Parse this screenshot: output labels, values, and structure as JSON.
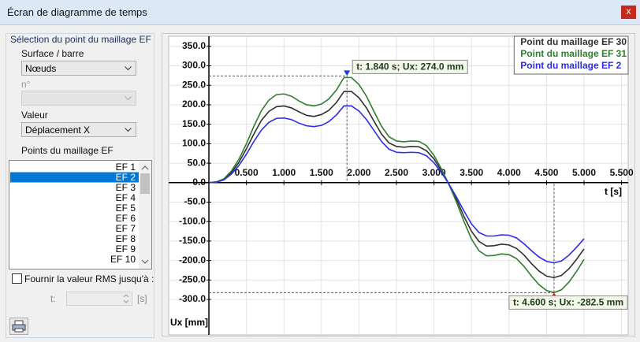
{
  "window": {
    "title": "Écran de diagramme de temps",
    "close": "x"
  },
  "panel": {
    "group_title": "Sélection du point du maillage EF",
    "surface_label": "Surface / barre",
    "surface_value": "Nœuds",
    "number_label": "n°",
    "value_label": "Valeur",
    "value_value": "Déplacement X",
    "points_label": "Points du maillage EF",
    "points": [
      "EF 1",
      "EF 2",
      "EF 3",
      "EF 4",
      "EF 5",
      "EF 6",
      "EF 7",
      "EF 8",
      "EF 9",
      "EF 10"
    ],
    "rms_label": "Fournir la valeur RMS jusqu'à :",
    "t_label": "t:",
    "t_unit": "[s]"
  },
  "chart_data": {
    "type": "line",
    "x_label": "t [s]",
    "y_label": "Ux [mm]",
    "xlim": [
      -0.536,
      5.588
    ],
    "ylim": [
      -391,
      376
    ],
    "xticks": [
      {
        "value": 0.5,
        "label": "0.500"
      },
      {
        "value": 1.0,
        "label": "1.000"
      },
      {
        "value": 1.5,
        "label": "1.500"
      },
      {
        "value": 2.0,
        "label": "2.000"
      },
      {
        "value": 2.5,
        "label": "2.500"
      },
      {
        "value": 3.0,
        "label": "3.000"
      },
      {
        "value": 3.5,
        "label": "3.500"
      },
      {
        "value": 4.0,
        "label": "4.000"
      },
      {
        "value": 4.5,
        "label": "4.500"
      },
      {
        "value": 5.0,
        "label": "5.000"
      },
      {
        "value": 5.5,
        "label": "5.500"
      }
    ],
    "yticks": [
      {
        "value": 350,
        "label": "350.0"
      },
      {
        "value": 300,
        "label": "300.0"
      },
      {
        "value": 250,
        "label": "250.0"
      },
      {
        "value": 200,
        "label": "200.0"
      },
      {
        "value": 150,
        "label": "150.0"
      },
      {
        "value": 100,
        "label": "100.0"
      },
      {
        "value": 50,
        "label": "50.0"
      },
      {
        "value": 0,
        "label": "0.0"
      },
      {
        "value": -50,
        "label": "-50.0"
      },
      {
        "value": -100,
        "label": "-100.0"
      },
      {
        "value": -150,
        "label": "-150.0"
      },
      {
        "value": -200,
        "label": "-200.0"
      },
      {
        "value": -250,
        "label": "-250.0"
      },
      {
        "value": -300,
        "label": "-300.0"
      }
    ],
    "grid": true,
    "x": [
      0,
      0.1,
      0.2,
      0.3,
      0.4,
      0.5,
      0.6,
      0.7,
      0.8,
      0.9,
      1.0,
      1.1,
      1.2,
      1.3,
      1.4,
      1.5,
      1.6,
      1.7,
      1.8,
      1.9,
      2.0,
      2.1,
      2.2,
      2.3,
      2.4,
      2.5,
      2.6,
      2.7,
      2.8,
      2.9,
      3.0,
      3.1,
      3.2,
      3.3,
      3.4,
      3.5,
      3.6,
      3.7,
      3.8,
      3.9,
      4.0,
      4.1,
      4.2,
      4.3,
      4.4,
      4.5,
      4.6,
      4.7,
      4.8,
      4.9,
      5.0
    ],
    "series": [
      {
        "name": "Point du maillage EF 30",
        "color": "#303030",
        "values": [
          0,
          2,
          9,
          26,
          52,
          87,
          125,
          160,
          183,
          195,
          197,
          192,
          182,
          173,
          170,
          175,
          186,
          206,
          234,
          234,
          218,
          192,
          158,
          125,
          102,
          93,
          91,
          93,
          92,
          82,
          61,
          30,
          -4,
          -43,
          -87,
          -125,
          -151,
          -163,
          -162,
          -158,
          -160,
          -169,
          -186,
          -208,
          -227,
          -240,
          -244,
          -238,
          -221,
          -197,
          -170
        ]
      },
      {
        "name": "Point du maillage EF 31",
        "color": "#2f7d2f",
        "values": [
          0,
          2,
          10,
          30,
          60,
          100,
          145,
          185,
          212,
          226,
          228,
          222,
          210,
          200,
          197,
          202,
          215,
          238,
          270,
          270,
          252,
          222,
          183,
          145,
          118,
          107,
          105,
          107,
          106,
          95,
          70,
          35,
          -5,
          -50,
          -100,
          -145,
          -175,
          -188,
          -187,
          -183,
          -185,
          -195,
          -215,
          -240,
          -262,
          -277,
          -282.5,
          -275,
          -255,
          -228,
          -197
        ]
      },
      {
        "name": "Point du maillage EF 2",
        "color": "#2b2bea",
        "values": [
          0,
          1,
          7,
          22,
          44,
          73,
          106,
          135,
          155,
          165,
          166,
          162,
          153,
          146,
          144,
          147,
          157,
          174,
          197,
          197,
          184,
          162,
          134,
          106,
          86,
          78,
          77,
          78,
          77,
          69,
          51,
          26,
          -4,
          -37,
          -73,
          -106,
          -128,
          -137,
          -137,
          -134,
          -135,
          -142,
          -157,
          -175,
          -191,
          -202,
          -206,
          -201,
          -186,
          -166,
          -144
        ]
      }
    ],
    "annotations": [
      {
        "text": "t: 1.840 s; Ux: 274.0 mm",
        "x": 1.84,
        "y": 274,
        "color": "#1a3fe0"
      },
      {
        "text": "t: 4.600 s; Ux: -282.5 mm",
        "x": 4.6,
        "y": -282.5,
        "color": "#e02020"
      }
    ]
  }
}
